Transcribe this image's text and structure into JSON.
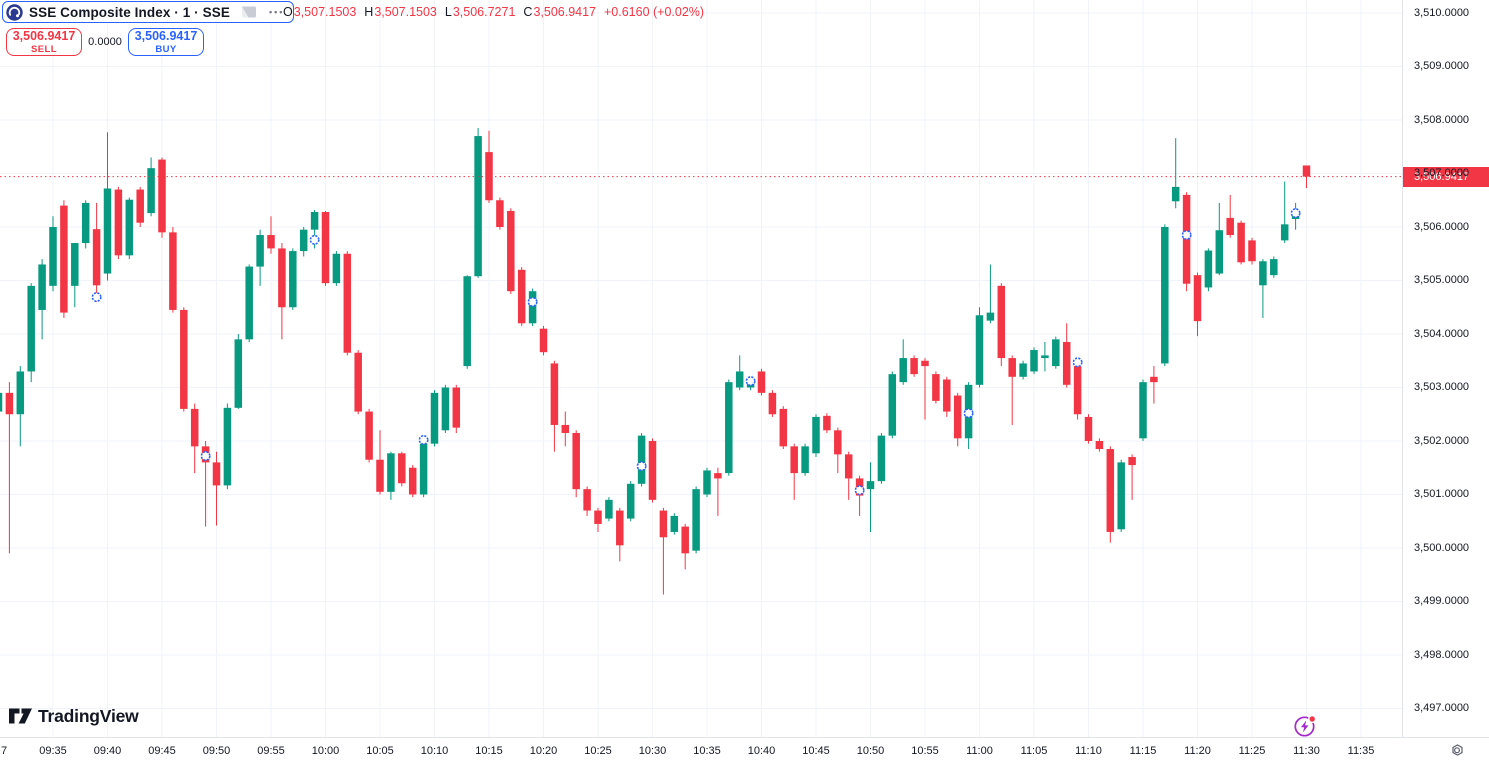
{
  "header": {
    "symbol_pill": {
      "title": "SSE Composite Index · 1 · SSE",
      "more": "•••"
    },
    "ohlc": {
      "o_label": "O",
      "o_value": "3,507.1503",
      "h_label": "H",
      "h_value": "3,507.1503",
      "l_label": "L",
      "l_value": "3,506.7271",
      "c_label": "C",
      "c_value": "3,506.9417",
      "change": "+0.6160 (+0.02%)"
    }
  },
  "trade_panel": {
    "sell_price": "3,506.9417",
    "sell_label": "SELL",
    "spread": "0.0000",
    "buy_price": "3,506.9417",
    "buy_label": "BUY"
  },
  "footer": {
    "logo_text": "TradingView"
  },
  "price_axis": {
    "labels": [
      "3,510.0000",
      "3,509.0000",
      "3,508.0000",
      "3,507.0000",
      "3,506.0000",
      "3,505.0000",
      "3,504.0000",
      "3,503.0000",
      "3,502.0000",
      "3,501.0000",
      "3,500.0000",
      "3,499.0000",
      "3,498.0000",
      "3,497.0000"
    ],
    "last_price_label": "3,506.9417"
  },
  "time_axis": {
    "day_label": "7",
    "labels": [
      "09:35",
      "09:40",
      "09:45",
      "09:50",
      "09:55",
      "10:00",
      "10:05",
      "10:10",
      "10:15",
      "10:20",
      "10:25",
      "10:30",
      "10:35",
      "10:40",
      "10:45",
      "10:50",
      "10:55",
      "11:00",
      "11:05",
      "11:10",
      "11:15",
      "11:20",
      "11:25",
      "11:30",
      "11:35"
    ]
  },
  "colors": {
    "up": "#089981",
    "down": "#F23645",
    "accent_blue": "#2962FF",
    "last_price_line": "#F23645",
    "grid": "#F0F3FA",
    "axis_text": "#131722",
    "muted": "#787B86",
    "marker": "#2962FF",
    "flash_purple": "#A429C9"
  },
  "chart_data": {
    "type": "candlestick",
    "title": "SSE Composite Index",
    "interval": "1",
    "exchange": "SSE",
    "last_price": 3506.9417,
    "ylim": [
      3497,
      3510
    ],
    "x_session_start": "09:30",
    "grid": "on",
    "candles": [
      [
        "09:30",
        3502.55,
        3503.05,
        3501.9,
        3502.9
      ],
      [
        "09:31",
        3502.9,
        3503.1,
        3499.9,
        3502.5
      ],
      [
        "09:32",
        3502.5,
        3503.4,
        3501.9,
        3503.3
      ],
      [
        "09:33",
        3503.3,
        3504.95,
        3503.1,
        3504.9
      ],
      [
        "09:34",
        3504.45,
        3505.4,
        3503.9,
        3505.3
      ],
      [
        "09:35",
        3504.9,
        3506.2,
        3504.8,
        3506.0
      ],
      [
        "09:36",
        3506.4,
        3506.5,
        3504.3,
        3504.4
      ],
      [
        "09:37",
        3504.9,
        3505.7,
        3504.5,
        3505.7
      ],
      [
        "09:38",
        3505.7,
        3506.5,
        3505.6,
        3506.45
      ],
      [
        "09:39",
        3505.96,
        3506.45,
        3504.6,
        3504.91
      ],
      [
        "09:40",
        3505.13,
        3507.77,
        3505.0,
        3506.72
      ],
      [
        "09:41",
        3506.7,
        3506.75,
        3505.4,
        3505.47
      ],
      [
        "09:42",
        3505.47,
        3506.55,
        3505.4,
        3506.51
      ],
      [
        "09:43",
        3506.7,
        3506.75,
        3506.0,
        3506.08
      ],
      [
        "09:44",
        3506.26,
        3507.3,
        3506.2,
        3507.1
      ],
      [
        "09:45",
        3507.26,
        3507.3,
        3505.8,
        3505.9
      ],
      [
        "09:46",
        3505.9,
        3506.0,
        3504.4,
        3504.45
      ],
      [
        "09:47",
        3504.45,
        3504.5,
        3502.55,
        3502.6
      ],
      [
        "09:48",
        3502.6,
        3502.7,
        3501.4,
        3501.9
      ],
      [
        "09:49",
        3501.9,
        3502.0,
        3500.4,
        3501.6
      ],
      [
        "09:50",
        3501.6,
        3501.8,
        3500.42,
        3501.17
      ],
      [
        "09:51",
        3501.17,
        3502.7,
        3501.1,
        3502.62
      ],
      [
        "09:52",
        3502.62,
        3504.0,
        3502.6,
        3503.9
      ],
      [
        "09:53",
        3503.9,
        3505.3,
        3503.85,
        3505.26
      ],
      [
        "09:54",
        3505.26,
        3505.95,
        3504.9,
        3505.85
      ],
      [
        "09:55",
        3505.85,
        3506.2,
        3505.5,
        3505.6
      ],
      [
        "09:56",
        3505.6,
        3505.7,
        3503.9,
        3504.5
      ],
      [
        "09:57",
        3504.5,
        3505.6,
        3504.45,
        3505.55
      ],
      [
        "09:58",
        3505.55,
        3506.0,
        3505.45,
        3505.95
      ],
      [
        "09:59",
        3505.95,
        3506.32,
        3505.6,
        3506.28
      ],
      [
        "10:00",
        3506.28,
        3506.3,
        3504.9,
        3504.95
      ],
      [
        "10:01",
        3504.95,
        3505.55,
        3504.9,
        3505.5
      ],
      [
        "10:02",
        3505.5,
        3505.55,
        3503.6,
        3503.65
      ],
      [
        "10:03",
        3503.65,
        3503.7,
        3502.5,
        3502.55
      ],
      [
        "10:04",
        3502.55,
        3502.6,
        3501.6,
        3501.65
      ],
      [
        "10:05",
        3501.65,
        3502.2,
        3501.0,
        3501.05
      ],
      [
        "10:06",
        3501.05,
        3501.8,
        3500.9,
        3501.77
      ],
      [
        "10:07",
        3501.77,
        3501.8,
        3501.15,
        3501.21
      ],
      [
        "10:08",
        3501.5,
        3501.55,
        3500.95,
        3501.0
      ],
      [
        "10:09",
        3501.0,
        3502.1,
        3500.95,
        3501.95
      ],
      [
        "10:10",
        3501.95,
        3502.95,
        3501.9,
        3502.9
      ],
      [
        "10:11",
        3502.2,
        3503.05,
        3502.15,
        3503.0
      ],
      [
        "10:12",
        3503.0,
        3503.05,
        3502.15,
        3502.25
      ],
      [
        "10:13",
        3503.4,
        3505.1,
        3503.35,
        3505.08
      ],
      [
        "10:14",
        3505.08,
        3507.85,
        3505.05,
        3507.7
      ],
      [
        "10:15",
        3507.4,
        3507.8,
        3506.45,
        3506.5
      ],
      [
        "10:16",
        3506.5,
        3506.55,
        3505.95,
        3506.0
      ],
      [
        "10:17",
        3506.3,
        3506.35,
        3504.75,
        3504.8
      ],
      [
        "10:18",
        3505.2,
        3505.25,
        3504.15,
        3504.2
      ],
      [
        "10:19",
        3504.2,
        3504.85,
        3504.15,
        3504.8
      ],
      [
        "10:20",
        3504.1,
        3504.15,
        3503.6,
        3503.66
      ],
      [
        "10:21",
        3503.45,
        3503.5,
        3501.8,
        3502.3
      ],
      [
        "10:22",
        3502.3,
        3502.55,
        3501.9,
        3502.15
      ],
      [
        "10:23",
        3502.15,
        3502.2,
        3500.95,
        3501.1
      ],
      [
        "10:24",
        3501.1,
        3501.15,
        3500.6,
        3500.7
      ],
      [
        "10:25",
        3500.7,
        3500.75,
        3500.3,
        3500.45
      ],
      [
        "10:26",
        3500.55,
        3500.95,
        3500.5,
        3500.9
      ],
      [
        "10:27",
        3500.7,
        3500.75,
        3499.75,
        3500.05
      ],
      [
        "10:28",
        3500.55,
        3501.25,
        3500.5,
        3501.2
      ],
      [
        "10:29",
        3501.2,
        3502.15,
        3501.15,
        3502.1
      ],
      [
        "10:30",
        3502.0,
        3502.05,
        3500.85,
        3500.9
      ],
      [
        "10:31",
        3500.7,
        3500.75,
        3499.13,
        3500.2
      ],
      [
        "10:32",
        3500.3,
        3500.65,
        3500.25,
        3500.6
      ],
      [
        "10:33",
        3500.4,
        3500.45,
        3499.6,
        3499.9
      ],
      [
        "10:34",
        3499.95,
        3501.15,
        3499.9,
        3501.1
      ],
      [
        "10:35",
        3501.0,
        3501.5,
        3500.95,
        3501.45
      ],
      [
        "10:36",
        3501.4,
        3501.5,
        3500.6,
        3501.3
      ],
      [
        "10:37",
        3501.4,
        3503.15,
        3501.35,
        3503.1
      ],
      [
        "10:38",
        3503.0,
        3503.6,
        3502.95,
        3503.3
      ],
      [
        "10:39",
        3503.0,
        3503.2,
        3502.95,
        3503.15
      ],
      [
        "10:40",
        3503.3,
        3503.35,
        3502.85,
        3502.9
      ],
      [
        "10:41",
        3502.9,
        3502.95,
        3502.45,
        3502.5
      ],
      [
        "10:42",
        3502.6,
        3502.65,
        3501.85,
        3501.9
      ],
      [
        "10:43",
        3501.9,
        3501.95,
        3500.9,
        3501.4
      ],
      [
        "10:44",
        3501.4,
        3501.95,
        3501.35,
        3501.9
      ],
      [
        "10:45",
        3501.77,
        3502.5,
        3501.7,
        3502.45
      ],
      [
        "10:46",
        3502.47,
        3502.52,
        3502.15,
        3502.2
      ],
      [
        "10:47",
        3502.2,
        3502.25,
        3501.4,
        3501.75
      ],
      [
        "10:48",
        3501.75,
        3501.8,
        3500.9,
        3501.3
      ],
      [
        "10:49",
        3501.3,
        3501.35,
        3500.6,
        3500.98
      ],
      [
        "10:50",
        3501.1,
        3501.6,
        3500.3,
        3501.25
      ],
      [
        "10:51",
        3501.25,
        3502.15,
        3501.2,
        3502.1
      ],
      [
        "10:52",
        3502.1,
        3503.3,
        3502.05,
        3503.25
      ],
      [
        "10:53",
        3503.1,
        3503.9,
        3503.05,
        3503.55
      ],
      [
        "10:54",
        3503.55,
        3503.6,
        3503.2,
        3503.25
      ],
      [
        "10:55",
        3503.5,
        3503.55,
        3502.4,
        3503.4
      ],
      [
        "10:56",
        3503.25,
        3503.3,
        3502.7,
        3502.75
      ],
      [
        "10:57",
        3503.15,
        3503.2,
        3502.45,
        3502.55
      ],
      [
        "10:58",
        3502.85,
        3502.9,
        3501.9,
        3502.05
      ],
      [
        "10:59",
        3502.05,
        3503.1,
        3501.85,
        3503.05
      ],
      [
        "11:00",
        3503.05,
        3504.5,
        3503.0,
        3504.35
      ],
      [
        "11:01",
        3504.25,
        3505.3,
        3504.2,
        3504.4
      ],
      [
        "11:02",
        3504.9,
        3504.95,
        3503.4,
        3503.55
      ],
      [
        "11:03",
        3503.55,
        3503.6,
        3502.3,
        3503.2
      ],
      [
        "11:04",
        3503.2,
        3503.5,
        3503.15,
        3503.45
      ],
      [
        "11:05",
        3503.3,
        3503.75,
        3503.25,
        3503.7
      ],
      [
        "11:06",
        3503.55,
        3503.85,
        3503.3,
        3503.6
      ],
      [
        "11:07",
        3503.4,
        3503.95,
        3503.35,
        3503.9
      ],
      [
        "11:08",
        3503.85,
        3504.2,
        3503.0,
        3503.05
      ],
      [
        "11:09",
        3503.4,
        3503.45,
        3502.4,
        3502.5
      ],
      [
        "11:10",
        3502.45,
        3502.5,
        3501.95,
        3502.0
      ],
      [
        "11:11",
        3502.0,
        3502.05,
        3501.8,
        3501.85
      ],
      [
        "11:12",
        3501.85,
        3501.9,
        3500.1,
        3500.3
      ],
      [
        "11:13",
        3500.35,
        3501.65,
        3500.3,
        3501.6
      ],
      [
        "11:14",
        3501.7,
        3501.75,
        3500.9,
        3501.55
      ],
      [
        "11:15",
        3502.05,
        3503.15,
        3502.0,
        3503.1
      ],
      [
        "11:16",
        3503.2,
        3503.4,
        3502.7,
        3503.1
      ],
      [
        "11:17",
        3503.45,
        3506.05,
        3503.4,
        3506.0
      ],
      [
        "11:18",
        3506.48,
        3507.66,
        3506.35,
        3506.75
      ],
      [
        "11:19",
        3506.6,
        3506.65,
        3504.8,
        3504.94
      ],
      [
        "11:20",
        3505.1,
        3505.15,
        3503.96,
        3504.24
      ],
      [
        "11:21",
        3504.87,
        3505.6,
        3504.8,
        3505.56
      ],
      [
        "11:22",
        3505.13,
        3506.45,
        3505.1,
        3505.94
      ],
      [
        "11:23",
        3506.17,
        3506.6,
        3505.8,
        3505.85
      ],
      [
        "11:24",
        3506.08,
        3506.12,
        3505.3,
        3505.34
      ],
      [
        "11:25",
        3505.75,
        3505.8,
        3505.3,
        3505.36
      ],
      [
        "11:26",
        3504.91,
        3505.4,
        3504.3,
        3505.36
      ],
      [
        "11:27",
        3505.1,
        3505.45,
        3505.05,
        3505.4
      ],
      [
        "11:28",
        3505.75,
        3506.85,
        3505.7,
        3506.05
      ],
      [
        "11:29",
        3506.15,
        3506.45,
        3505.95,
        3506.25
      ],
      [
        "11:30",
        3507.1503,
        3507.1503,
        3506.7271,
        3506.9417
      ]
    ],
    "trade_markers": [
      [
        "09:39",
        3504.69
      ],
      [
        "09:49",
        3501.72
      ],
      [
        "09:59",
        3505.76
      ],
      [
        "10:09",
        3502.02
      ],
      [
        "10:19",
        3504.6
      ],
      [
        "10:29",
        3501.53
      ],
      [
        "10:39",
        3503.12
      ],
      [
        "10:49",
        3501.08
      ],
      [
        "10:59",
        3502.52
      ],
      [
        "11:09",
        3503.47
      ],
      [
        "11:19",
        3505.85
      ],
      [
        "11:29",
        3506.26
      ]
    ]
  }
}
